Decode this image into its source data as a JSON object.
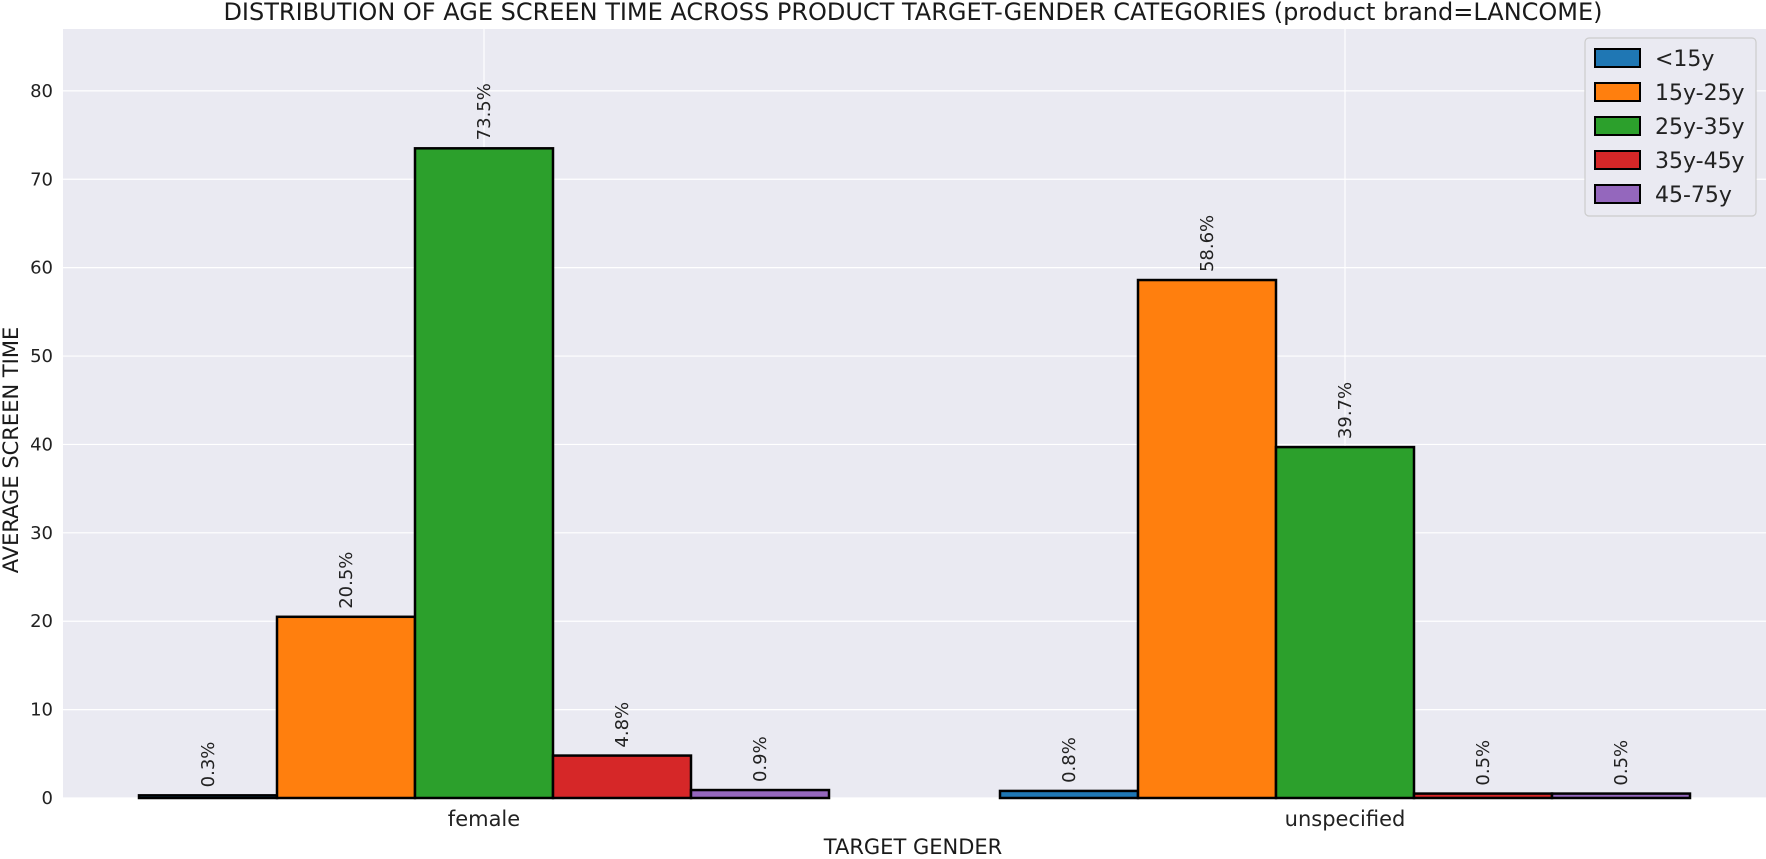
{
  "chart_data": {
    "type": "bar",
    "title": "DISTRIBUTION OF AGE SCREEN TIME ACROSS PRODUCT TARGET-GENDER CATEGORIES (product brand=LANCOME)",
    "xlabel": "TARGET GENDER",
    "ylabel": "AVERAGE SCREEN TIME",
    "categories": [
      "female",
      "unspecified"
    ],
    "ylim": [
      0,
      87
    ],
    "yticks": [
      0,
      10,
      20,
      30,
      40,
      50,
      60,
      70,
      80
    ],
    "grid": true,
    "legend_position": "top-right",
    "series": [
      {
        "name": "<15y",
        "color": "#1f77b4",
        "values": [
          0.3,
          0.8
        ],
        "labels": [
          "0.3%",
          "0.8%"
        ]
      },
      {
        "name": "15y-25y",
        "color": "#ff7f0e",
        "values": [
          20.5,
          58.6
        ],
        "labels": [
          "20.5%",
          "58.6%"
        ]
      },
      {
        "name": "25y-35y",
        "color": "#2ca02c",
        "values": [
          73.5,
          39.7
        ],
        "labels": [
          "73.5%",
          "39.7%"
        ]
      },
      {
        "name": "35y-45y",
        "color": "#d62728",
        "values": [
          4.8,
          0.5
        ],
        "labels": [
          "4.8%",
          "0.5%"
        ]
      },
      {
        "name": "45-75y",
        "color": "#9467bd",
        "values": [
          0.9,
          0.5
        ],
        "labels": [
          "0.9%",
          "0.5%"
        ]
      }
    ],
    "background_color": "#eaeaf2",
    "grid_color": "#ffffff"
  }
}
